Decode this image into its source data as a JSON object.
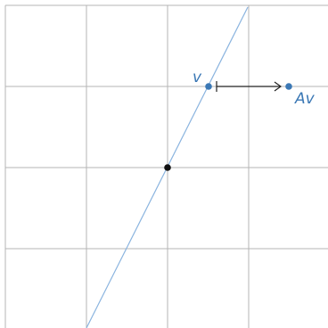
{
  "diagram": {
    "labels": {
      "v": "v",
      "av": "Av"
    },
    "colors": {
      "background": "#ffffff",
      "grid": "#b4b4b4",
      "line": "#8ab4df",
      "point_blue": "#3b78b5",
      "origin": "#111111",
      "arrow": "#222222"
    }
  }
}
